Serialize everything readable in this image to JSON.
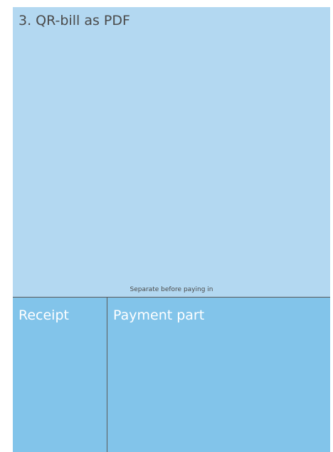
{
  "title": "3. QR-bill as PDF",
  "separator": "Separate before paying in",
  "receipt": "Receipt",
  "payment_part": "Payment part"
}
